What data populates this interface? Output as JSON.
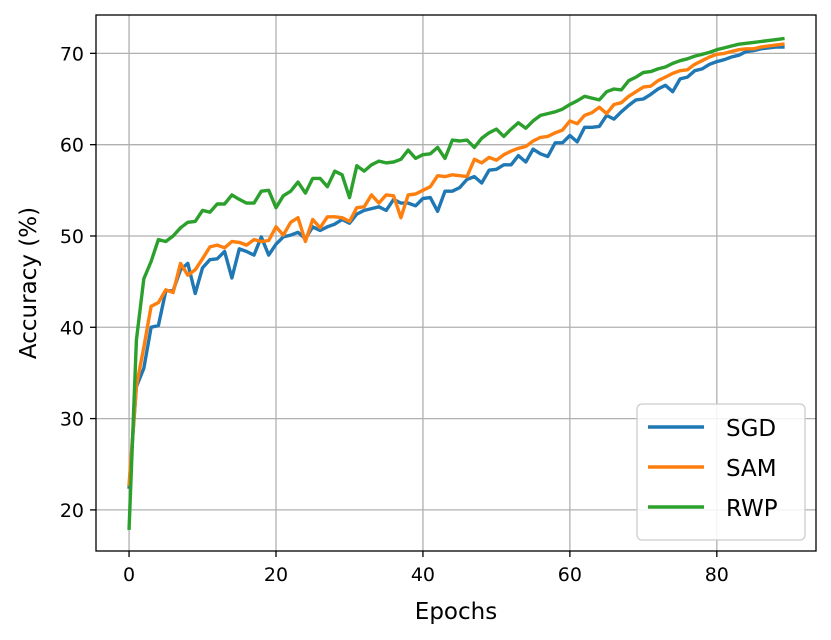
{
  "chart_data": {
    "type": "line",
    "xlabel": "Epochs",
    "ylabel": "Accuracy (%)",
    "xlim": [
      -4.5,
      93.5
    ],
    "ylim": [
      15.5,
      74.2
    ],
    "xticks": [
      0,
      20,
      40,
      60,
      80
    ],
    "yticks": [
      20,
      30,
      40,
      50,
      60,
      70
    ],
    "grid": true,
    "legend_position": "lower-right",
    "series": [
      {
        "name": "SGD",
        "color": "#1f77b4",
        "values": [
          22.5,
          33.5,
          35.5,
          40.0,
          40.2,
          44.0,
          44.0,
          46.3,
          47.0,
          43.7,
          46.5,
          47.4,
          47.5,
          48.3,
          45.4,
          48.6,
          48.3,
          47.9,
          49.9,
          47.9,
          49.1,
          49.9,
          50.1,
          50.4,
          49.7,
          51.0,
          50.6,
          51.0,
          51.3,
          51.8,
          51.4,
          52.4,
          52.8,
          53.0,
          53.2,
          52.8,
          54.0,
          53.6,
          53.6,
          53.3,
          54.1,
          54.2,
          52.7,
          54.9,
          54.9,
          55.3,
          56.2,
          56.5,
          55.8,
          57.2,
          57.3,
          57.8,
          57.8,
          58.8,
          58.1,
          59.5,
          59.0,
          58.7,
          60.2,
          60.2,
          61.0,
          60.3,
          61.9,
          61.9,
          62.0,
          63.2,
          62.8,
          63.6,
          64.3,
          64.9,
          65.0,
          65.5,
          66.1,
          66.5,
          65.8,
          67.2,
          67.4,
          68.1,
          68.3,
          68.8,
          69.1,
          69.3,
          69.6,
          69.8,
          70.2,
          70.3,
          70.5,
          70.6,
          70.7,
          70.7
        ]
      },
      {
        "name": "SAM",
        "color": "#ff7f0e",
        "values": [
          22.8,
          33.6,
          37.8,
          42.3,
          42.7,
          44.1,
          43.8,
          47.0,
          45.7,
          46.3,
          47.5,
          48.8,
          49.0,
          48.7,
          49.4,
          49.3,
          49.0,
          49.6,
          49.4,
          49.5,
          51.0,
          50.1,
          51.5,
          52.0,
          49.4,
          51.8,
          50.9,
          52.1,
          52.1,
          52.0,
          51.6,
          53.1,
          53.2,
          54.5,
          53.6,
          54.5,
          54.4,
          52.0,
          54.5,
          54.6,
          55.0,
          55.4,
          56.6,
          56.5,
          56.7,
          56.6,
          56.5,
          58.4,
          58.0,
          58.6,
          58.3,
          58.9,
          59.3,
          59.6,
          59.8,
          60.4,
          60.8,
          60.9,
          61.3,
          61.6,
          62.6,
          62.3,
          63.2,
          63.5,
          64.1,
          63.4,
          64.4,
          64.6,
          65.3,
          65.8,
          66.3,
          66.4,
          67.0,
          67.4,
          67.8,
          68.1,
          68.2,
          68.8,
          69.2,
          69.6,
          69.9,
          70.0,
          70.2,
          70.4,
          70.5,
          70.5,
          70.7,
          70.8,
          70.9,
          71.0
        ]
      },
      {
        "name": "RWP",
        "color": "#2ca02c",
        "values": [
          18.0,
          38.6,
          45.3,
          47.2,
          49.6,
          49.4,
          50.0,
          50.9,
          51.5,
          51.6,
          52.8,
          52.6,
          53.5,
          53.5,
          54.5,
          54.0,
          53.6,
          53.6,
          54.9,
          55.0,
          53.1,
          54.4,
          54.9,
          55.9,
          54.7,
          56.3,
          56.3,
          55.4,
          57.1,
          56.7,
          54.2,
          57.7,
          57.1,
          57.8,
          58.2,
          58.0,
          58.1,
          58.4,
          59.4,
          58.5,
          58.9,
          59.0,
          59.7,
          58.5,
          60.5,
          60.4,
          60.5,
          59.7,
          60.7,
          61.3,
          61.7,
          60.9,
          61.7,
          62.4,
          61.8,
          62.6,
          63.2,
          63.4,
          63.6,
          63.9,
          64.4,
          64.8,
          65.3,
          65.1,
          64.9,
          65.8,
          66.1,
          66.0,
          67.0,
          67.4,
          67.9,
          68.0,
          68.3,
          68.5,
          68.9,
          69.2,
          69.4,
          69.7,
          69.9,
          70.1,
          70.4,
          70.6,
          70.8,
          71.0,
          71.1,
          71.2,
          71.3,
          71.4,
          71.5,
          71.6
        ]
      }
    ]
  }
}
